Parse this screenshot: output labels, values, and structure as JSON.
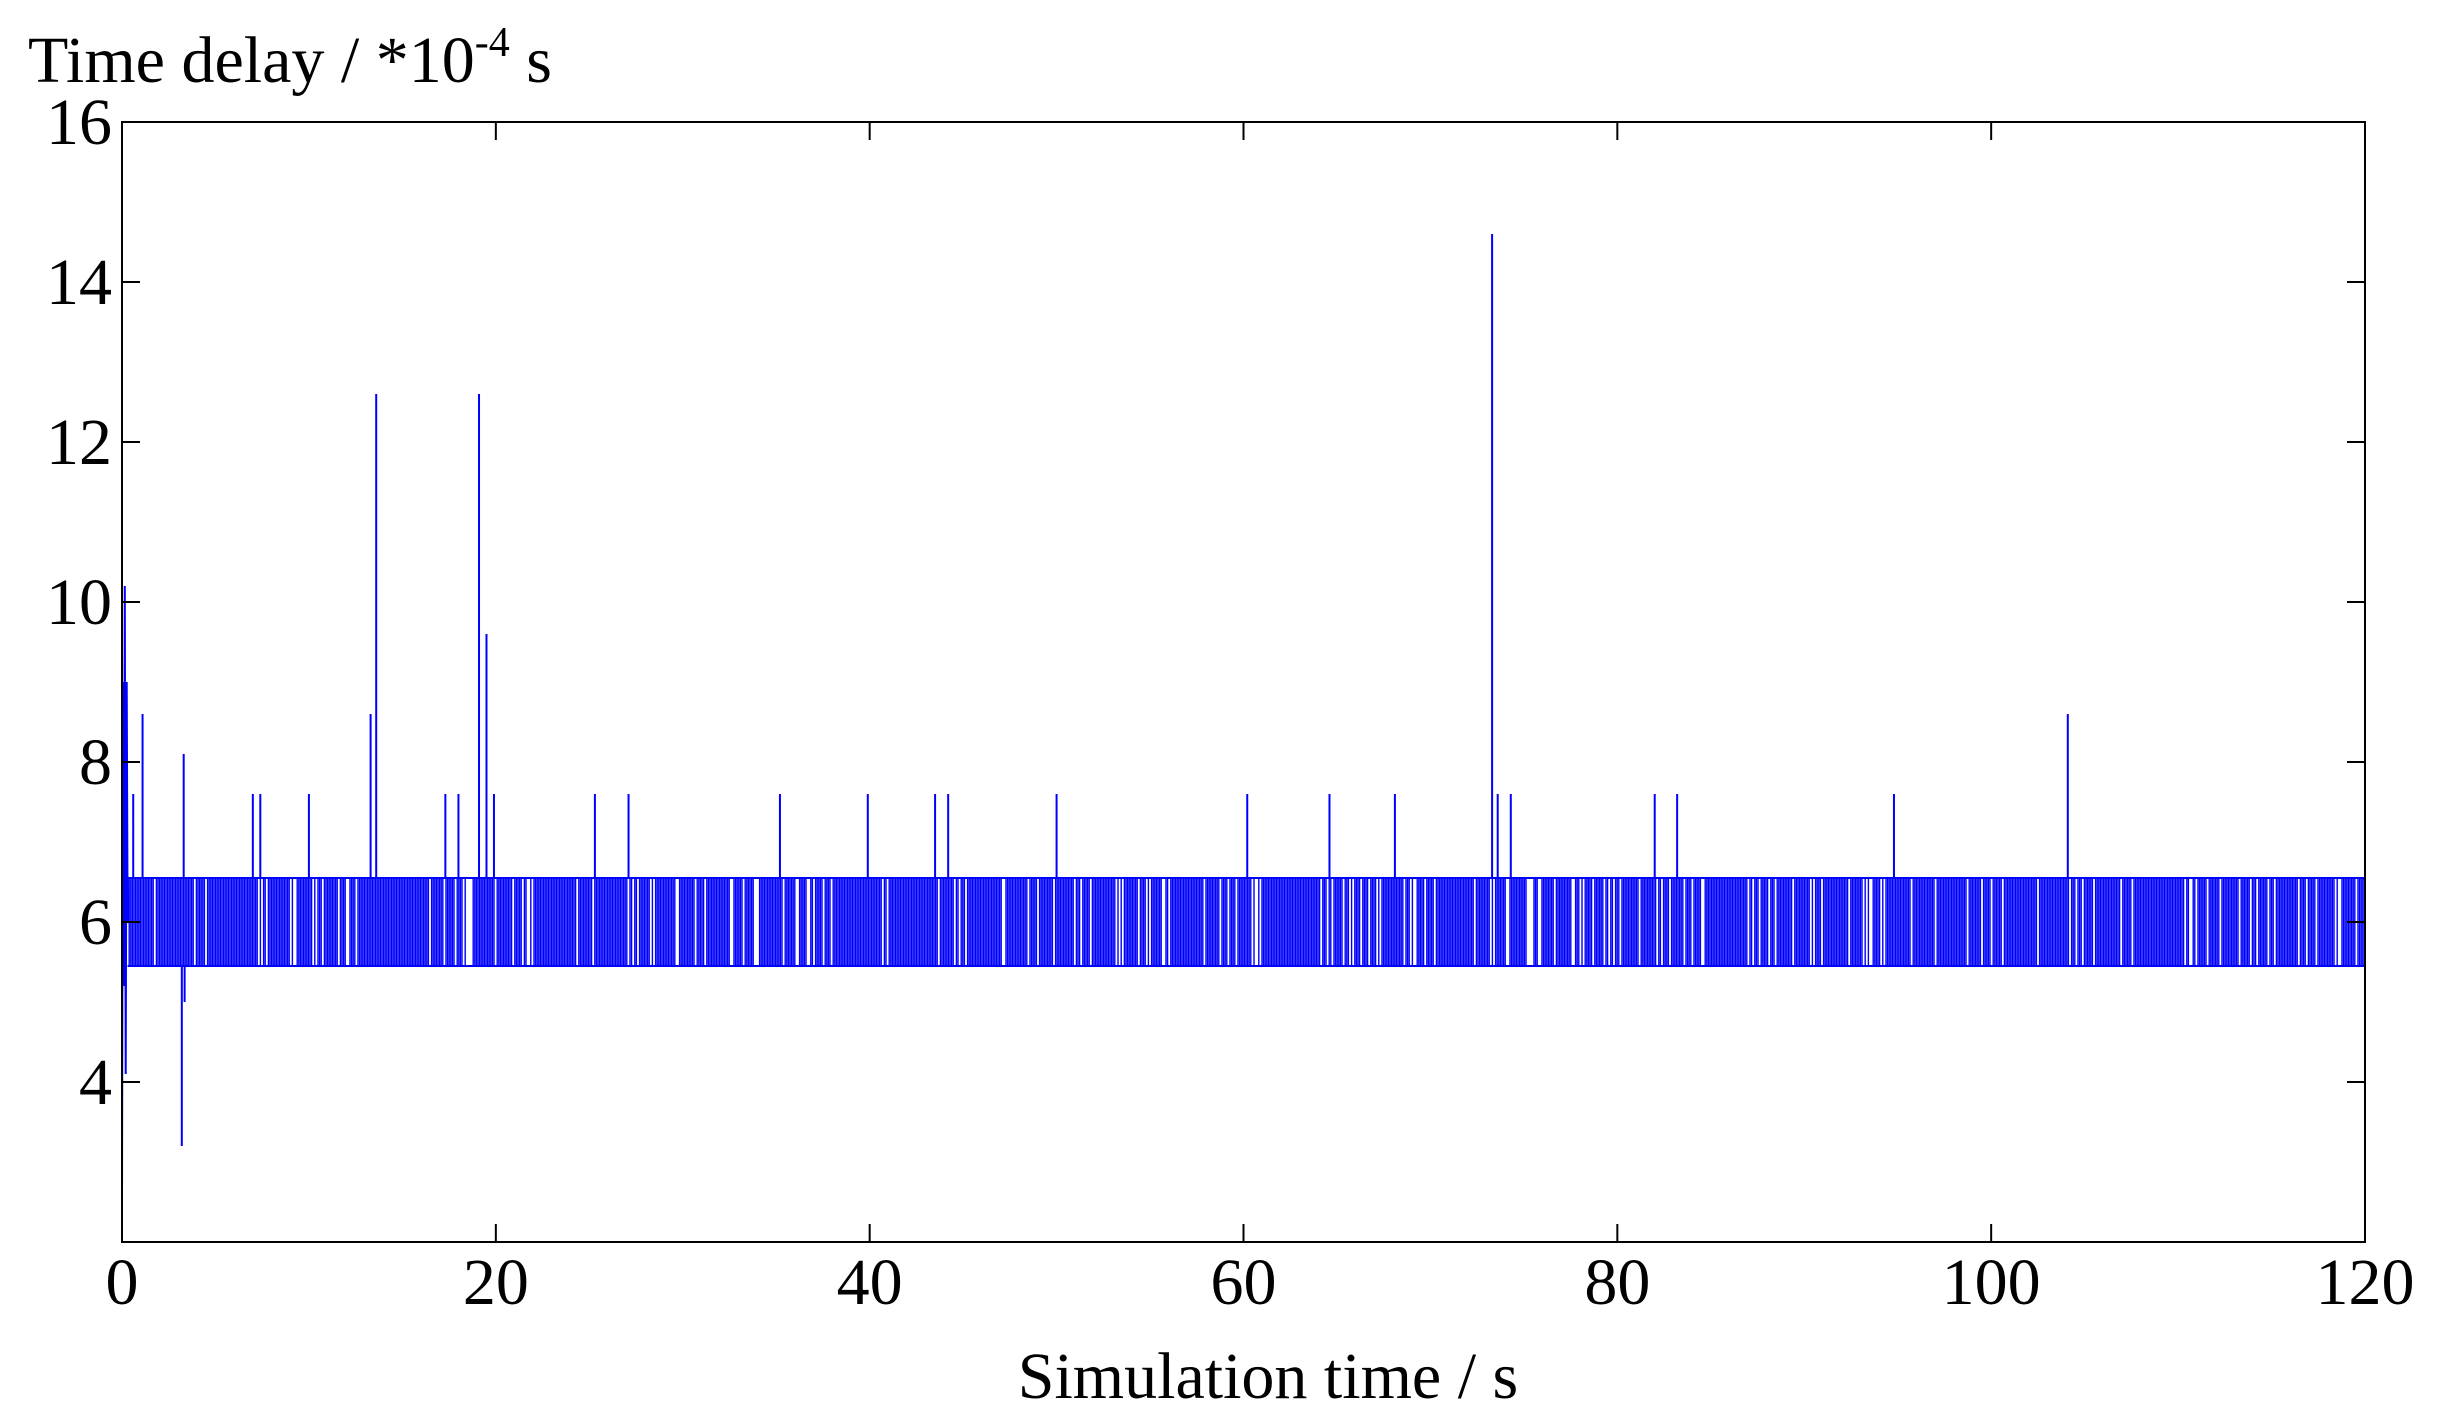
{
  "chart_data": {
    "type": "line",
    "ylabel": "Time delay / *10",
    "ylabel_exponent": "-4",
    "ylabel_unit": " s",
    "xlabel": "Simulation time / s",
    "xlim": [
      0,
      120
    ],
    "ylim": [
      2,
      16
    ],
    "xticks": [
      0,
      20,
      40,
      60,
      80,
      100,
      120
    ],
    "yticks": [
      4,
      6,
      8,
      10,
      12,
      14,
      16
    ],
    "grid": false,
    "series": [
      {
        "color": "#0000ff",
        "band": {
          "low": 5.45,
          "high": 6.55,
          "from_x": 0.3,
          "to_x": 120
        },
        "early": [
          {
            "x": 0.0,
            "y": 2.6
          },
          {
            "x": 0.05,
            "y": 9.0
          },
          {
            "x": 0.1,
            "y": 5.2
          },
          {
            "x": 0.15,
            "y": 10.2
          },
          {
            "x": 0.2,
            "y": 4.1
          },
          {
            "x": 0.25,
            "y": 9.0
          },
          {
            "x": 0.3,
            "y": 6.0
          }
        ],
        "spikes_up": [
          {
            "x": 0.6,
            "y": 7.6
          },
          {
            "x": 1.1,
            "y": 8.6
          },
          {
            "x": 3.3,
            "y": 8.1
          },
          {
            "x": 7.0,
            "y": 7.6
          },
          {
            "x": 7.4,
            "y": 7.6
          },
          {
            "x": 10.0,
            "y": 7.6
          },
          {
            "x": 13.3,
            "y": 8.6
          },
          {
            "x": 13.6,
            "y": 12.6
          },
          {
            "x": 17.3,
            "y": 7.6
          },
          {
            "x": 18.0,
            "y": 7.6
          },
          {
            "x": 19.1,
            "y": 12.6
          },
          {
            "x": 19.5,
            "y": 9.6
          },
          {
            "x": 19.9,
            "y": 7.6
          },
          {
            "x": 25.3,
            "y": 7.6
          },
          {
            "x": 27.1,
            "y": 7.6
          },
          {
            "x": 35.2,
            "y": 7.6
          },
          {
            "x": 39.9,
            "y": 7.6
          },
          {
            "x": 43.5,
            "y": 7.6
          },
          {
            "x": 44.2,
            "y": 7.6
          },
          {
            "x": 50.0,
            "y": 7.6
          },
          {
            "x": 60.2,
            "y": 7.6
          },
          {
            "x": 64.6,
            "y": 7.6
          },
          {
            "x": 68.1,
            "y": 7.6
          },
          {
            "x": 73.3,
            "y": 14.6
          },
          {
            "x": 73.6,
            "y": 7.6
          },
          {
            "x": 74.3,
            "y": 7.6
          },
          {
            "x": 82.0,
            "y": 7.6
          },
          {
            "x": 83.2,
            "y": 7.6
          },
          {
            "x": 94.8,
            "y": 7.6
          },
          {
            "x": 104.1,
            "y": 8.6
          }
        ],
        "spikes_down": [
          {
            "x": 3.2,
            "y": 3.2
          },
          {
            "x": 3.35,
            "y": 5.0
          }
        ]
      }
    ]
  }
}
